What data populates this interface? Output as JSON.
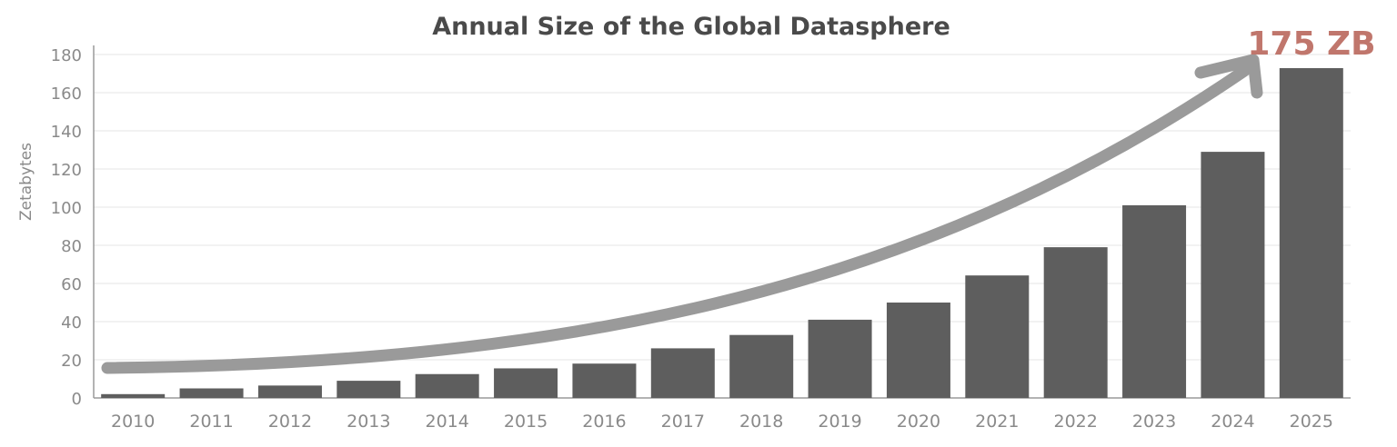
{
  "chart_data": {
    "type": "bar",
    "title": "Annual Size of the Global Datasphere",
    "xlabel": "",
    "ylabel": "Zetabytes",
    "ylim": [
      0,
      180
    ],
    "yticks": [
      0,
      20,
      40,
      60,
      80,
      100,
      120,
      140,
      160,
      180
    ],
    "grid": true,
    "categories": [
      "2010",
      "2011",
      "2012",
      "2013",
      "2014",
      "2015",
      "2016",
      "2017",
      "2018",
      "2019",
      "2020",
      "2021",
      "2022",
      "2023",
      "2024",
      "2025"
    ],
    "values": [
      2,
      5,
      6.5,
      9,
      12.5,
      15.5,
      18,
      26,
      33,
      41,
      50,
      64.2,
      79,
      101,
      129,
      175
    ],
    "annotation": "175 ZB",
    "colors": {
      "bar": "#5e5e5e",
      "annotation": "#c0766c",
      "arrow": "#9a9a9a",
      "text": "#8a8a8a",
      "title": "#4a4a4a"
    }
  }
}
